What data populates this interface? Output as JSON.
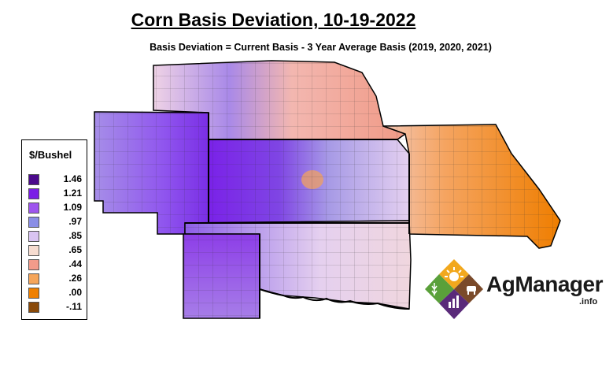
{
  "title": "Corn Basis Deviation, 10-19-2022",
  "subtitle": "Basis Deviation = Current Basis - 3 Year Average Basis (2019, 2020, 2021)",
  "legend": {
    "title": "$/Bushel",
    "items": [
      {
        "label": "1.46",
        "color": "#4b0a8c"
      },
      {
        "label": "1.21",
        "color": "#7a1ee6"
      },
      {
        "label": "1.09",
        "color": "#9e55ee"
      },
      {
        "label": ".97",
        "color": "#8a8ee6"
      },
      {
        "label": ".85",
        "color": "#d9c4f2"
      },
      {
        "label": ".65",
        "color": "#f6dcd0"
      },
      {
        "label": ".44",
        "color": "#f29b8a"
      },
      {
        "label": ".26",
        "color": "#f5a55a"
      },
      {
        "label": ".00",
        "color": "#f08000"
      },
      {
        "label": "-.11",
        "color": "#8a4a0a"
      }
    ]
  },
  "logo": {
    "name_main": "AgManager",
    "name_sub": ".info"
  }
}
